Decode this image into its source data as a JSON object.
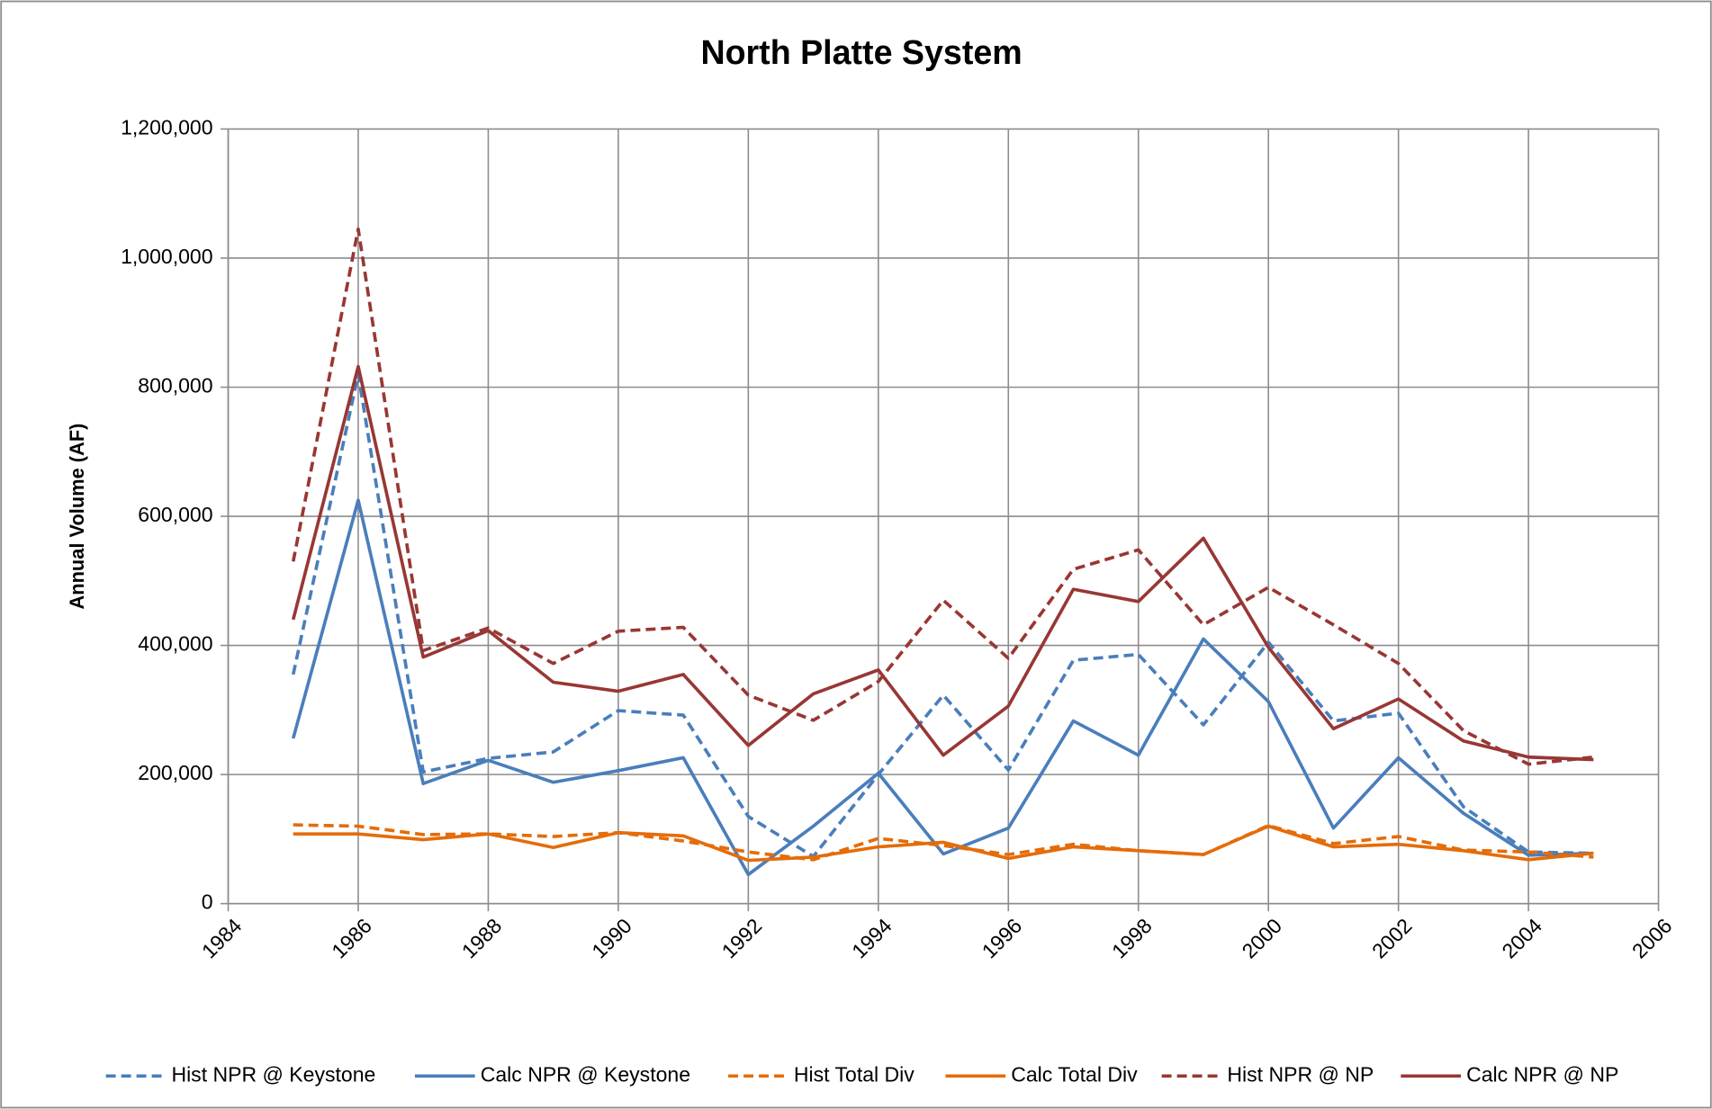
{
  "chart_data": {
    "type": "line",
    "title": "North Platte System",
    "y_label": "Annual Volume (AF)",
    "x": [
      1985,
      1986,
      1987,
      1988,
      1989,
      1990,
      1991,
      1992,
      1993,
      1994,
      1995,
      1996,
      1997,
      1998,
      1999,
      2000,
      2001,
      2002,
      2003,
      2004,
      2005
    ],
    "xlim": [
      1984,
      2006
    ],
    "xticks": [
      1984,
      1986,
      1988,
      1990,
      1992,
      1994,
      1996,
      1998,
      2000,
      2002,
      2004,
      2006
    ],
    "ylim": [
      0,
      1200000
    ],
    "yticks": [
      0,
      {
        "value": 200000,
        "label": "200,000"
      },
      {
        "value": 400000,
        "label": "400,000"
      },
      {
        "value": 600000,
        "label": "600,000"
      },
      {
        "value": 800000,
        "label": "800,000"
      },
      {
        "value": 1000000,
        "label": "1,000,000"
      },
      {
        "value": 1200000,
        "label": "1,200,000"
      }
    ],
    "grid": true,
    "legend": "bottom",
    "series": [
      {
        "name": "Hist NPR @ Keystone",
        "color": "#4a7ebb",
        "dashed": true,
        "values": [
          355000,
          820000,
          204000,
          225000,
          235000,
          299000,
          292000,
          135000,
          73000,
          200000,
          323000,
          207000,
          377000,
          386000,
          277000,
          405000,
          283000,
          295000,
          150000,
          80000,
          78000
        ]
      },
      {
        "name": "Calc NPR @ Keystone",
        "color": "#4a7ebb",
        "dashed": false,
        "values": [
          256000,
          625000,
          186000,
          222000,
          188000,
          206000,
          226000,
          45000,
          120000,
          202000,
          77000,
          117000,
          283000,
          230000,
          410000,
          313000,
          117000,
          226000,
          140000,
          75000,
          78000
        ]
      },
      {
        "name": "Hist Total Div",
        "color": "#e46c0a",
        "dashed": true,
        "values": [
          122000,
          120000,
          107000,
          108000,
          104000,
          110000,
          97000,
          80000,
          68000,
          101000,
          90000,
          76000,
          92000,
          82000,
          76000,
          121000,
          93000,
          104000,
          83000,
          80000,
          72000
        ]
      },
      {
        "name": "Calc Total Div",
        "color": "#e46c0a",
        "dashed": false,
        "values": [
          108000,
          108000,
          99000,
          108000,
          87000,
          110000,
          105000,
          67000,
          72000,
          88000,
          95000,
          70000,
          88000,
          82000,
          76000,
          120000,
          88000,
          92000,
          82000,
          68000,
          78000
        ]
      },
      {
        "name": "Hist NPR @ NP",
        "color": "#983734",
        "dashed": true,
        "values": [
          530000,
          1045000,
          392000,
          427000,
          372000,
          422000,
          428000,
          323000,
          284000,
          344000,
          470000,
          380000,
          518000,
          548000,
          432000,
          490000,
          432000,
          372000,
          268000,
          216000,
          227000
        ]
      },
      {
        "name": "Calc NPR @ NP",
        "color": "#983734",
        "dashed": false,
        "values": [
          440000,
          832000,
          382000,
          423000,
          343000,
          329000,
          355000,
          245000,
          325000,
          362000,
          230000,
          306000,
          487000,
          468000,
          566000,
          397000,
          271000,
          317000,
          252000,
          227000,
          223000
        ]
      }
    ]
  }
}
